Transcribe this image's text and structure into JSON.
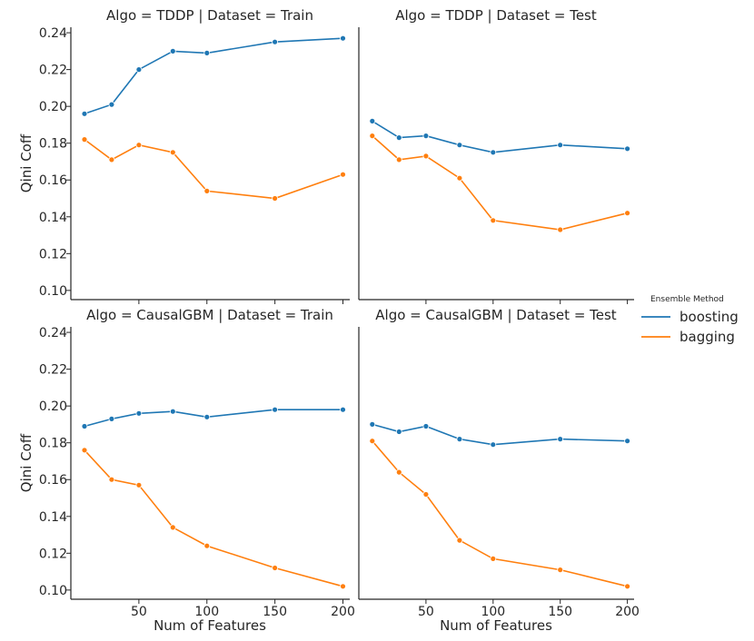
{
  "colors": {
    "boosting": "#1f77b4",
    "bagging": "#ff7f0e",
    "axis": "#262626",
    "background": "#ffffff"
  },
  "shared": {
    "x": [
      10,
      30,
      50,
      75,
      100,
      150,
      200
    ],
    "xlim": [
      0,
      205
    ],
    "ylim": [
      0.095,
      0.243
    ],
    "xticks": [
      50,
      100,
      150,
      200
    ],
    "xtick_labels": [
      "50",
      "100",
      "150",
      "200"
    ],
    "yticks": [
      0.1,
      0.12,
      0.14,
      0.16,
      0.18,
      0.2,
      0.22,
      0.24
    ],
    "ytick_labels": [
      "0.10",
      "0.12",
      "0.14",
      "0.16",
      "0.18",
      "0.20",
      "0.22",
      "0.24"
    ],
    "xlabel": "Num of Features",
    "ylabel": "Qini Coff"
  },
  "legend": {
    "title": "Ensemble Method",
    "placement": "right",
    "entries": [
      "boosting",
      "bagging"
    ]
  },
  "chart_data": [
    {
      "type": "line",
      "title": "Algo = TDDP | Dataset = Train",
      "x": [
        10,
        30,
        50,
        75,
        100,
        150,
        200
      ],
      "series": [
        {
          "name": "boosting",
          "values": [
            0.196,
            0.201,
            0.22,
            0.23,
            0.229,
            0.235,
            0.237
          ]
        },
        {
          "name": "bagging",
          "values": [
            0.182,
            0.171,
            0.179,
            0.175,
            0.154,
            0.15,
            0.163
          ]
        }
      ],
      "xlabel": "",
      "ylabel": "Qini Coff",
      "ylim": [
        0.095,
        0.243
      ]
    },
    {
      "type": "line",
      "title": "Algo = TDDP | Dataset = Test",
      "x": [
        10,
        30,
        50,
        75,
        100,
        150,
        200
      ],
      "series": [
        {
          "name": "boosting",
          "values": [
            0.192,
            0.183,
            0.184,
            0.179,
            0.175,
            0.179,
            0.177
          ]
        },
        {
          "name": "bagging",
          "values": [
            0.184,
            0.171,
            0.173,
            0.161,
            0.138,
            0.133,
            0.142
          ]
        }
      ],
      "xlabel": "",
      "ylabel": "",
      "ylim": [
        0.095,
        0.243
      ]
    },
    {
      "type": "line",
      "title": "Algo = CausalGBM | Dataset = Train",
      "x": [
        10,
        30,
        50,
        75,
        100,
        150,
        200
      ],
      "series": [
        {
          "name": "boosting",
          "values": [
            0.189,
            0.193,
            0.196,
            0.197,
            0.194,
            0.198,
            0.198
          ]
        },
        {
          "name": "bagging",
          "values": [
            0.176,
            0.16,
            0.157,
            0.134,
            0.124,
            0.112,
            0.102
          ]
        }
      ],
      "xlabel": "Num of Features",
      "ylabel": "Qini Coff",
      "ylim": [
        0.095,
        0.243
      ]
    },
    {
      "type": "line",
      "title": "Algo = CausalGBM | Dataset = Test",
      "x": [
        10,
        30,
        50,
        75,
        100,
        150,
        200
      ],
      "series": [
        {
          "name": "boosting",
          "values": [
            0.19,
            0.186,
            0.189,
            0.182,
            0.179,
            0.182,
            0.181
          ]
        },
        {
          "name": "bagging",
          "values": [
            0.181,
            0.164,
            0.152,
            0.127,
            0.117,
            0.111,
            0.102
          ]
        }
      ],
      "xlabel": "Num of Features",
      "ylabel": "",
      "ylim": [
        0.095,
        0.243
      ]
    }
  ]
}
